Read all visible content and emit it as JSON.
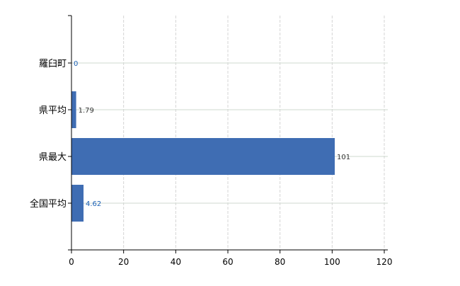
{
  "chart_data": {
    "type": "bar",
    "orientation": "horizontal",
    "categories": [
      "羅臼町",
      "県平均",
      "県最大",
      "全国平均"
    ],
    "values": [
      0,
      1.79,
      101,
      4.62
    ],
    "data_labels": [
      "0",
      "1.79",
      "101",
      "4.62"
    ],
    "xlim": [
      0,
      120
    ],
    "xticks": [
      0,
      20,
      40,
      60,
      80,
      100,
      120
    ],
    "grid": true,
    "bar_color": "#3f6db3",
    "label_colors": [
      "#1a5fb4",
      "#333333",
      "#333333",
      "#1a5fb4"
    ],
    "title": "",
    "xlabel": "",
    "ylabel": ""
  }
}
